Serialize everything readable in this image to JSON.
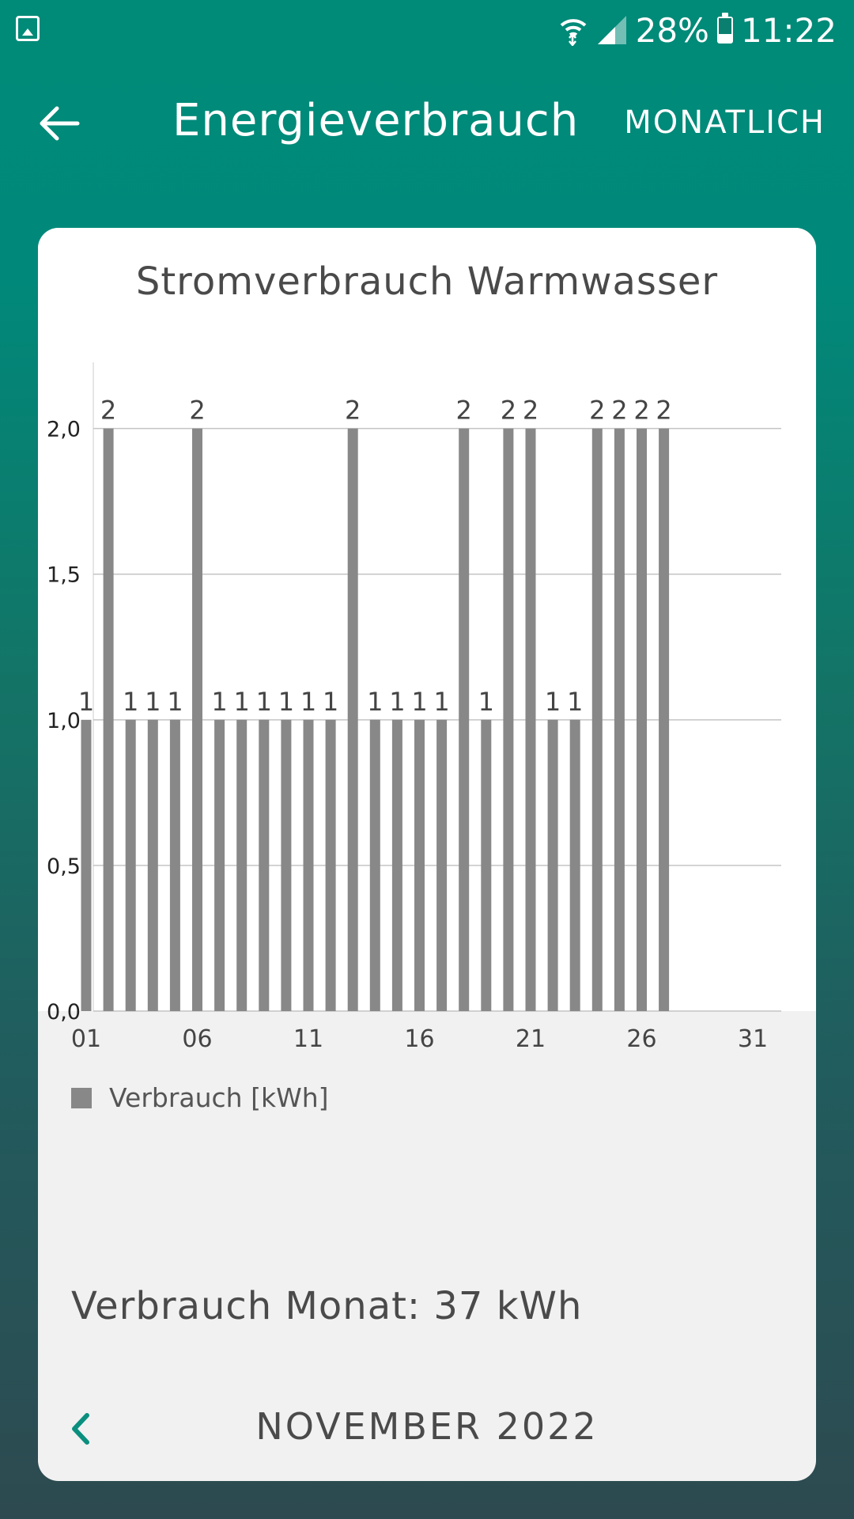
{
  "status_bar": {
    "battery": "28%",
    "time": "11:22"
  },
  "header": {
    "title": "Energieverbrauch",
    "mode_button": "MONATLICH"
  },
  "card": {
    "title": "Stromverbrauch Warmwasser",
    "legend_label": "Verbrauch [kWh]",
    "total_text": "Verbrauch Monat: 37 kWh",
    "period_label": "NOVEMBER 2022"
  },
  "chart_data": {
    "type": "bar",
    "title": "Stromverbrauch Warmwasser",
    "series": [
      {
        "name": "Verbrauch [kWh]",
        "values": [
          1,
          2,
          1,
          1,
          1,
          2,
          1,
          1,
          1,
          1,
          1,
          1,
          2,
          1,
          1,
          1,
          1,
          2,
          1,
          2,
          2,
          1,
          1,
          2,
          2,
          2,
          2,
          null,
          null,
          null,
          null
        ]
      }
    ],
    "categories": [
      "01",
      "02",
      "03",
      "04",
      "05",
      "06",
      "07",
      "08",
      "09",
      "10",
      "11",
      "12",
      "13",
      "14",
      "15",
      "16",
      "17",
      "18",
      "19",
      "20",
      "21",
      "22",
      "23",
      "24",
      "25",
      "26",
      "27",
      "28",
      "29",
      "30",
      "31"
    ],
    "x_tick_labels": [
      "01",
      "06",
      "11",
      "16",
      "21",
      "26",
      "31"
    ],
    "y_tick_labels": [
      "0,0",
      "0,5",
      "1,0",
      "1,5",
      "2,0"
    ],
    "ylim": [
      0,
      2.2
    ],
    "grid": true,
    "legend": "bottom-left",
    "bar_color": "#888888"
  }
}
